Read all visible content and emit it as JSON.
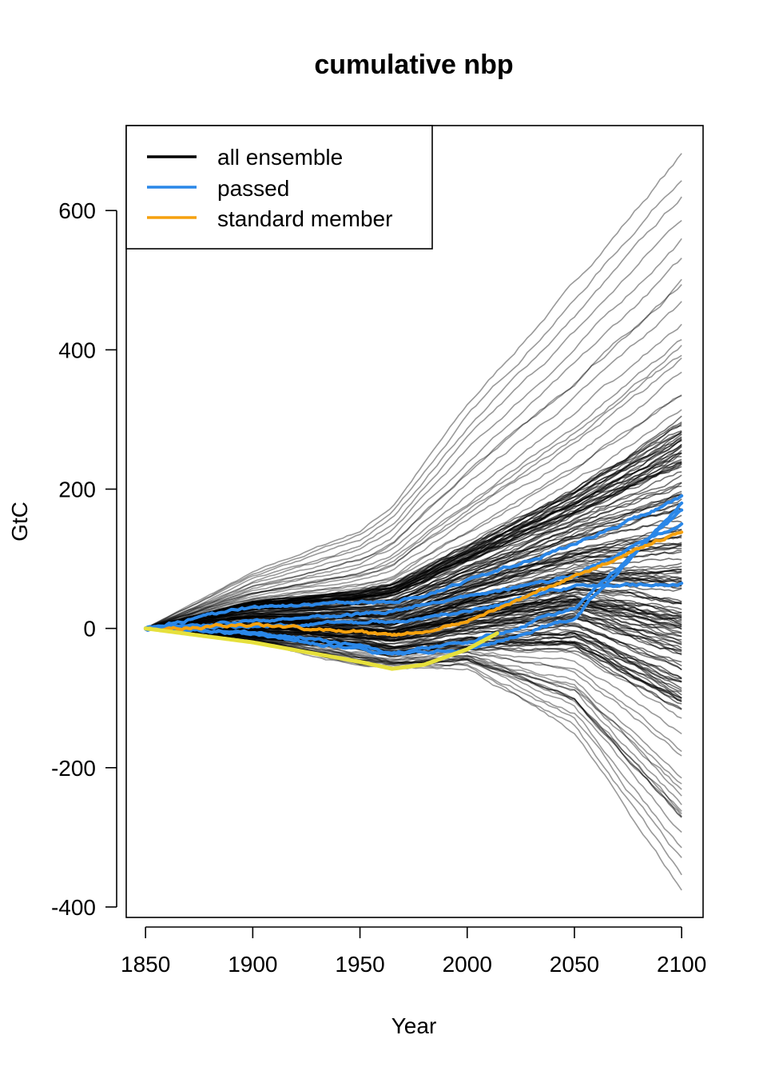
{
  "chart_data": {
    "type": "line",
    "title": "cumulative nbp",
    "xlabel": "Year",
    "ylabel": "GtC",
    "xlim": [
      1841,
      2110
    ],
    "ylim": [
      -415,
      722
    ],
    "x_ticks": [
      1850,
      1900,
      1950,
      2000,
      2050,
      2100
    ],
    "y_ticks": [
      -400,
      -200,
      0,
      200,
      400,
      600
    ],
    "x_tick_labels": [
      "1850",
      "1900",
      "1950",
      "2000",
      "2050",
      "2100"
    ],
    "y_tick_labels": [
      "-400",
      "-200",
      "0",
      "200",
      "400",
      "600"
    ],
    "grid": false,
    "legend": {
      "position": "top-left",
      "entries": [
        {
          "label": "all ensemble",
          "color": "#000000"
        },
        {
          "label": "passed",
          "color": "#2a87e8"
        },
        {
          "label": "standard member",
          "color": "#f5a10e"
        }
      ]
    },
    "colors": {
      "ensemble": "#000000",
      "passed": "#2a87e8",
      "standard": "#f5a10e",
      "observed": "#e6e03c"
    },
    "ensemble_envelope": {
      "description_values_only": true,
      "x": [
        1850,
        1900,
        1950,
        1965,
        2000,
        2050,
        2100
      ],
      "upper_extreme": [
        0,
        80,
        140,
        175,
        320,
        495,
        680
      ],
      "upper_dense": [
        0,
        40,
        55,
        65,
        120,
        200,
        300
      ],
      "lower_dense": [
        0,
        -15,
        -30,
        -40,
        -30,
        -30,
        -120
      ],
      "lower_extreme": [
        0,
        -20,
        -55,
        -60,
        -55,
        -150,
        -375
      ]
    },
    "series": [
      {
        "group": "passed",
        "x": [
          1850,
          1900,
          1950,
          1965,
          2000,
          2050,
          2100
        ],
        "values": [
          0,
          30,
          38,
          36,
          68,
          120,
          188
        ]
      },
      {
        "group": "passed",
        "x": [
          1850,
          1900,
          1950,
          1965,
          2000,
          2050,
          2100
        ],
        "values": [
          0,
          10,
          20,
          25,
          45,
          75,
          150
        ]
      },
      {
        "group": "passed",
        "x": [
          1850,
          1900,
          1950,
          1965,
          2000,
          2050,
          2100
        ],
        "values": [
          0,
          5,
          8,
          10,
          25,
          60,
          65
        ]
      },
      {
        "group": "passed",
        "x": [
          1850,
          1900,
          1950,
          1965,
          2000,
          2050,
          2100
        ],
        "values": [
          0,
          -5,
          -25,
          -35,
          -20,
          30,
          170
        ]
      },
      {
        "group": "passed",
        "x": [
          1850,
          1900,
          1950,
          1965,
          2000,
          2050,
          2100
        ],
        "values": [
          0,
          -8,
          -30,
          -38,
          -30,
          15,
          180
        ]
      },
      {
        "group": "standard",
        "x": [
          1850,
          1900,
          1950,
          1965,
          2000,
          2050,
          2100
        ],
        "values": [
          0,
          5,
          -5,
          -12,
          10,
          75,
          140
        ]
      },
      {
        "group": "observed",
        "x": [
          1850,
          1900,
          1950,
          1965,
          1980,
          2000,
          2014
        ],
        "values": [
          0,
          -20,
          -48,
          -58,
          -52,
          -30,
          -7
        ]
      }
    ]
  }
}
